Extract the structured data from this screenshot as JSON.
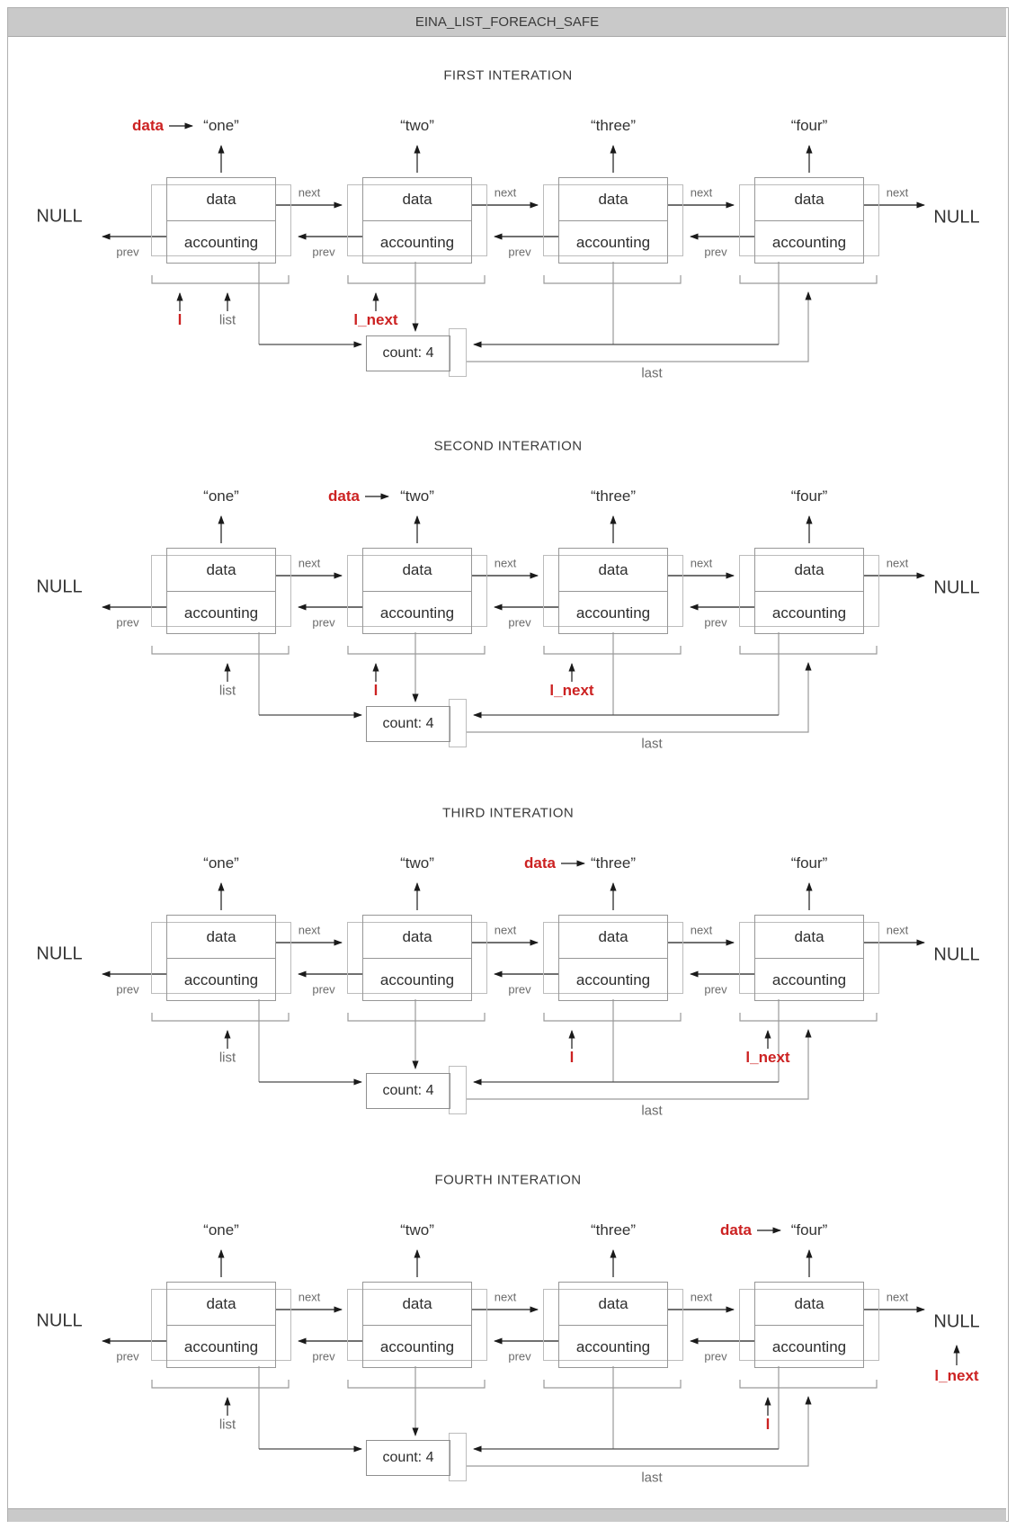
{
  "window": {
    "title": "EINA_LIST_FOREACH_SAFE"
  },
  "colors": {
    "accent_red": "#cc2222",
    "bar_bg": "#c9c9c9",
    "line_gray": "#9a9a9a",
    "line_dark": "#4a4a4a",
    "arrow_black": "#1a1a1a"
  },
  "diagram": {
    "items": [
      "“one”",
      "“two”",
      "“three”",
      "“four”"
    ],
    "labels": {
      "data_cell": "data",
      "accounting_cell": "accounting",
      "next": "next",
      "prev": "prev",
      "null": "NULL",
      "count": "count: 4",
      "list": "list",
      "last": "last",
      "l": "l",
      "l_next": "l_next",
      "data_pointer": "data"
    },
    "iterations": [
      {
        "title": "FIRST INTERATION",
        "data_index": 0,
        "l_index": 0,
        "l_next_index": 1,
        "l_next_at_null": false
      },
      {
        "title": "SECOND INTERATION",
        "data_index": 1,
        "l_index": 1,
        "l_next_index": 2,
        "l_next_at_null": false
      },
      {
        "title": "THIRD INTERATION",
        "data_index": 2,
        "l_index": 2,
        "l_next_index": 3,
        "l_next_at_null": false
      },
      {
        "title": "FOURTH INTERATION",
        "data_index": 3,
        "l_index": 3,
        "l_next_index": null,
        "l_next_at_null": true
      }
    ]
  }
}
